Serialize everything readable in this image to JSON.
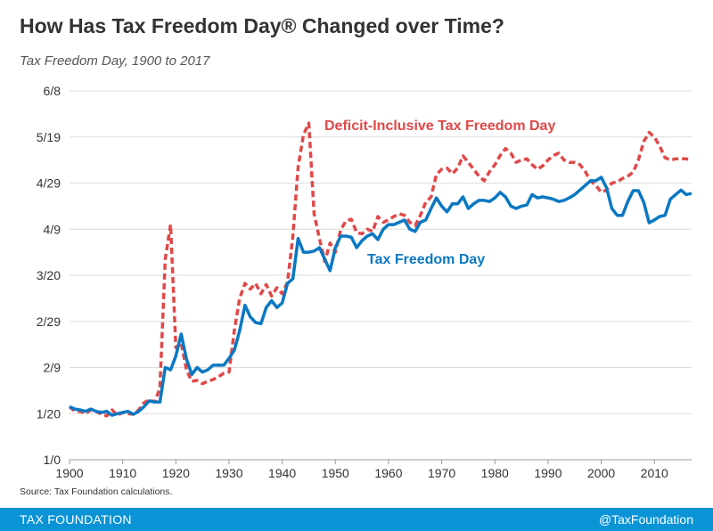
{
  "title": "How Has Tax Freedom Day® Changed over Time?",
  "subtitle": "Tax Freedom Day, 1900 to 2017",
  "source": "Source: Tax Foundation calculations.",
  "footer": {
    "brand": "TAX FOUNDATION",
    "handle": "@TaxFoundation",
    "color": "#0a94d6"
  },
  "chart_data": {
    "type": "line",
    "xlim": [
      1900,
      2017
    ],
    "ylim": [
      0,
      160
    ],
    "x_ticks": [
      "1900",
      "1910",
      "1920",
      "1930",
      "1940",
      "1950",
      "1960",
      "1970",
      "1980",
      "1990",
      "2000",
      "2010"
    ],
    "y_tick_labels": [
      "1/0",
      "1/20",
      "2/9",
      "2/29",
      "3/20",
      "4/9",
      "4/29",
      "5/19",
      "6/8"
    ],
    "y_unit": "day of year",
    "grid": "horizontal",
    "x_start": 1900,
    "series": [
      {
        "name": "Deficit-Inclusive Tax Freedom Day",
        "color": "#e04848",
        "style": "dashed",
        "values": [
          23,
          21,
          21,
          20,
          21.6,
          21,
          19.7,
          19,
          21.6,
          19.3,
          20.5,
          20,
          19.7,
          21.6,
          24.7,
          26,
          25,
          31,
          87,
          102,
          48.7,
          50.6,
          39,
          34,
          34.4,
          33,
          34,
          34.8,
          36,
          37.5,
          38,
          56,
          70,
          76.5,
          74,
          76.5,
          72,
          76,
          71,
          74.6,
          72,
          77,
          97,
          127,
          141,
          146,
          106.7,
          96,
          86,
          94,
          90,
          99.7,
          103.6,
          104.3,
          98.5,
          98,
          100,
          99,
          105.5,
          103,
          104,
          105.5,
          106.7,
          106,
          103,
          101.6,
          106,
          111.7,
          114,
          123.7,
          126,
          126.5,
          124,
          126.5,
          131.8,
          129,
          126,
          123,
          121,
          125,
          128,
          132,
          135,
          133,
          129,
          130,
          130.5,
          128,
          126,
          127.5,
          130,
          132,
          133,
          130,
          129,
          129,
          128,
          125,
          121,
          119,
          116,
          117,
          120,
          120.5,
          122,
          123,
          124.7,
          130,
          138,
          142,
          140,
          136,
          131,
          130,
          130.5,
          130.5,
          130.5,
          130
        ]
      },
      {
        "name": "Tax Freedom Day",
        "color": "#0a78c2",
        "style": "solid",
        "values": [
          23,
          22,
          21.6,
          21,
          22,
          21,
          20.5,
          21,
          19.3,
          20,
          20.5,
          21,
          19.7,
          21,
          23,
          25.5,
          25,
          25,
          40,
          39,
          45,
          54.5,
          43.7,
          37,
          40,
          38,
          39,
          41,
          41,
          41,
          44,
          47.5,
          56,
          67,
          62,
          59.5,
          59,
          66,
          69,
          66,
          68,
          76.5,
          78.5,
          96,
          90,
          90,
          90.5,
          92,
          87,
          82,
          92,
          97,
          97,
          96.5,
          92,
          95,
          97,
          98,
          95.5,
          100,
          102,
          102,
          103,
          104,
          100,
          99,
          103,
          104,
          109,
          113.6,
          110,
          107.5,
          111,
          111,
          114,
          109,
          111,
          112.5,
          112.5,
          112,
          113.6,
          116,
          114,
          110,
          109,
          110,
          110.5,
          115,
          113.6,
          114,
          113.6,
          113,
          112,
          112.5,
          113.6,
          115,
          117,
          119,
          121,
          121,
          122.5,
          118,
          109,
          106,
          106,
          112,
          116.7,
          116.7,
          111.7,
          102.8,
          104,
          105.5,
          106,
          113,
          115,
          117,
          115,
          115.5
        ]
      }
    ],
    "annotations": [
      "Deficit-Inclusive Tax Freedom Day",
      "Tax Freedom Day"
    ]
  }
}
